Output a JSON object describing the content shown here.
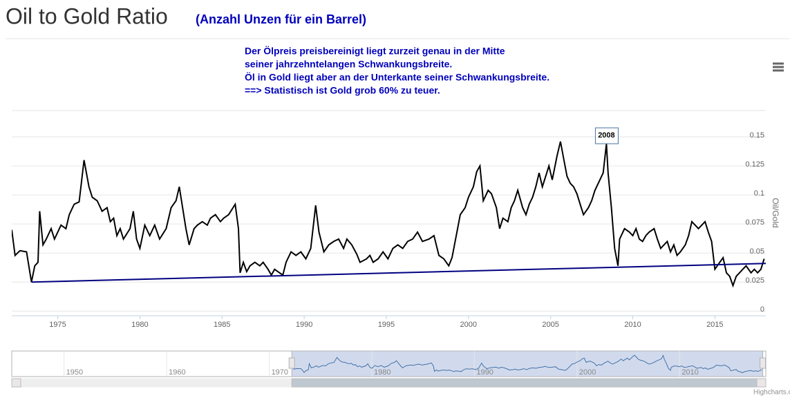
{
  "header": {
    "title": "Oil to Gold Ratio",
    "subtitle": "(Anzahl Unzen für ein Barrel)"
  },
  "chart_data": {
    "type": "line",
    "annotation_lines": [
      "Der Ölpreis preisbereinigt liegt zurzeit genau in der Mitte",
      "seiner jahrzehntelangen Schwankungsbreite.",
      "Öl in Gold liegt aber an der Unterkante seiner Schwankungsbreite.",
      "==> Statistisch ist Gold grob 60% zu teuer."
    ],
    "y_axis_label": "Oil/Gold",
    "xlim": [
      1972.2,
      2018.1
    ],
    "xticks": [
      1975,
      1980,
      1985,
      1990,
      1995,
      2000,
      2005,
      2010,
      2015
    ],
    "ylim": [
      -0.004,
      0.175
    ],
    "yticks": [
      0,
      0.025,
      0.05,
      0.075,
      0.1,
      0.125,
      0.15
    ],
    "grid": true,
    "series": [
      {
        "color": "#000000",
        "x": [
          1972.2,
          1972.4,
          1972.7,
          1973.1,
          1973.4,
          1973.6,
          1973.8,
          1973.9,
          1974.1,
          1974.3,
          1974.6,
          1974.8,
          1975.2,
          1975.5,
          1975.7,
          1976.0,
          1976.3,
          1976.6,
          1976.9,
          1977.1,
          1977.4,
          1977.7,
          1978.0,
          1978.2,
          1978.4,
          1978.6,
          1978.8,
          1979.0,
          1979.4,
          1979.6,
          1979.8,
          1980.0,
          1980.3,
          1980.6,
          1980.9,
          1981.2,
          1981.6,
          1981.9,
          1982.2,
          1982.4,
          1982.6,
          1982.8,
          1983.0,
          1983.3,
          1983.5,
          1983.8,
          1984.1,
          1984.3,
          1984.6,
          1984.9,
          1985.1,
          1985.4,
          1985.8,
          1986.0,
          1986.1,
          1986.3,
          1986.5,
          1986.7,
          1987.0,
          1987.3,
          1987.5,
          1987.8,
          1988.0,
          1988.2,
          1988.5,
          1988.7,
          1988.9,
          1989.2,
          1989.5,
          1989.8,
          1990.1,
          1990.4,
          1990.7,
          1990.9,
          1991.2,
          1991.5,
          1991.8,
          1992.1,
          1992.4,
          1992.6,
          1992.9,
          1993.2,
          1993.4,
          1993.8,
          1994.0,
          1994.2,
          1994.5,
          1994.8,
          1995.1,
          1995.4,
          1995.7,
          1996.0,
          1996.3,
          1996.6,
          1996.9,
          1997.2,
          1997.6,
          1997.9,
          1998.2,
          1998.5,
          1998.8,
          1999.0,
          1999.3,
          1999.5,
          1999.8,
          2000.0,
          2000.3,
          2000.5,
          2000.7,
          2000.9,
          2001.2,
          2001.4,
          2001.7,
          2001.9,
          2002.1,
          2002.4,
          2002.6,
          2002.8,
          2003.0,
          2003.3,
          2003.5,
          2003.7,
          2003.9,
          2004.1,
          2004.3,
          2004.5,
          2004.7,
          2004.9,
          2005.1,
          2005.4,
          2005.6,
          2005.8,
          2006.0,
          2006.2,
          2006.4,
          2006.6,
          2006.8,
          2007.0,
          2007.3,
          2007.5,
          2007.7,
          2007.9,
          2008.2,
          2008.4,
          2008.5,
          2008.7,
          2008.9,
          2009.1,
          2009.2,
          2009.5,
          2009.8,
          2010.0,
          2010.2,
          2010.4,
          2010.6,
          2010.8,
          2011.0,
          2011.3,
          2011.5,
          2011.7,
          2011.9,
          2012.1,
          2012.3,
          2012.5,
          2012.7,
          2012.9,
          2013.2,
          2013.4,
          2013.6,
          2013.8,
          2014.0,
          2014.2,
          2014.4,
          2014.6,
          2014.8,
          2015.0,
          2015.3,
          2015.5,
          2015.7,
          2015.9,
          2016.1,
          2016.3,
          2016.5,
          2016.7,
          2016.9,
          2017.2,
          2017.4,
          2017.6,
          2017.8,
          2018.0
        ],
        "values": [
          0.07,
          0.048,
          0.052,
          0.051,
          0.025,
          0.039,
          0.042,
          0.086,
          0.057,
          0.062,
          0.071,
          0.062,
          0.074,
          0.071,
          0.083,
          0.092,
          0.094,
          0.13,
          0.107,
          0.098,
          0.095,
          0.086,
          0.089,
          0.077,
          0.08,
          0.065,
          0.071,
          0.062,
          0.071,
          0.086,
          0.062,
          0.054,
          0.074,
          0.065,
          0.074,
          0.062,
          0.071,
          0.089,
          0.095,
          0.107,
          0.089,
          0.071,
          0.057,
          0.071,
          0.074,
          0.077,
          0.074,
          0.08,
          0.083,
          0.077,
          0.08,
          0.083,
          0.092,
          0.071,
          0.033,
          0.042,
          0.034,
          0.039,
          0.042,
          0.039,
          0.042,
          0.036,
          0.031,
          0.036,
          0.033,
          0.031,
          0.042,
          0.051,
          0.048,
          0.051,
          0.045,
          0.054,
          0.091,
          0.068,
          0.051,
          0.057,
          0.06,
          0.062,
          0.054,
          0.062,
          0.057,
          0.049,
          0.042,
          0.045,
          0.048,
          0.042,
          0.045,
          0.051,
          0.045,
          0.054,
          0.057,
          0.054,
          0.06,
          0.062,
          0.068,
          0.06,
          0.062,
          0.065,
          0.048,
          0.045,
          0.039,
          0.046,
          0.068,
          0.083,
          0.089,
          0.098,
          0.107,
          0.12,
          0.125,
          0.095,
          0.104,
          0.101,
          0.089,
          0.071,
          0.08,
          0.077,
          0.089,
          0.095,
          0.104,
          0.089,
          0.083,
          0.092,
          0.098,
          0.107,
          0.119,
          0.107,
          0.116,
          0.125,
          0.113,
          0.134,
          0.146,
          0.131,
          0.116,
          0.11,
          0.107,
          0.101,
          0.092,
          0.083,
          0.089,
          0.095,
          0.104,
          0.11,
          0.119,
          0.144,
          0.119,
          0.089,
          0.054,
          0.039,
          0.062,
          0.071,
          0.068,
          0.065,
          0.071,
          0.062,
          0.06,
          0.065,
          0.068,
          0.071,
          0.062,
          0.054,
          0.057,
          0.06,
          0.051,
          0.057,
          0.048,
          0.051,
          0.057,
          0.065,
          0.077,
          0.074,
          0.071,
          0.074,
          0.077,
          0.068,
          0.06,
          0.036,
          0.042,
          0.046,
          0.033,
          0.03,
          0.022,
          0.03,
          0.033,
          0.036,
          0.039,
          0.033,
          0.036,
          0.033,
          0.036,
          0.045
        ]
      },
      {
        "color": "#000080",
        "x": [
          1973.4,
          2018.1
        ],
        "values": [
          0.025,
          0.041
        ]
      }
    ],
    "flag": {
      "x": 2008.4,
      "value": 0.144,
      "label": "2008"
    },
    "navigator": {
      "color": "#4572a7",
      "xlim": [
        1944.9,
        2018.4
      ],
      "xticks": [
        1950,
        1960,
        1970,
        1980,
        1990,
        2000,
        2010
      ]
    },
    "credits": "Highcharts.com"
  }
}
